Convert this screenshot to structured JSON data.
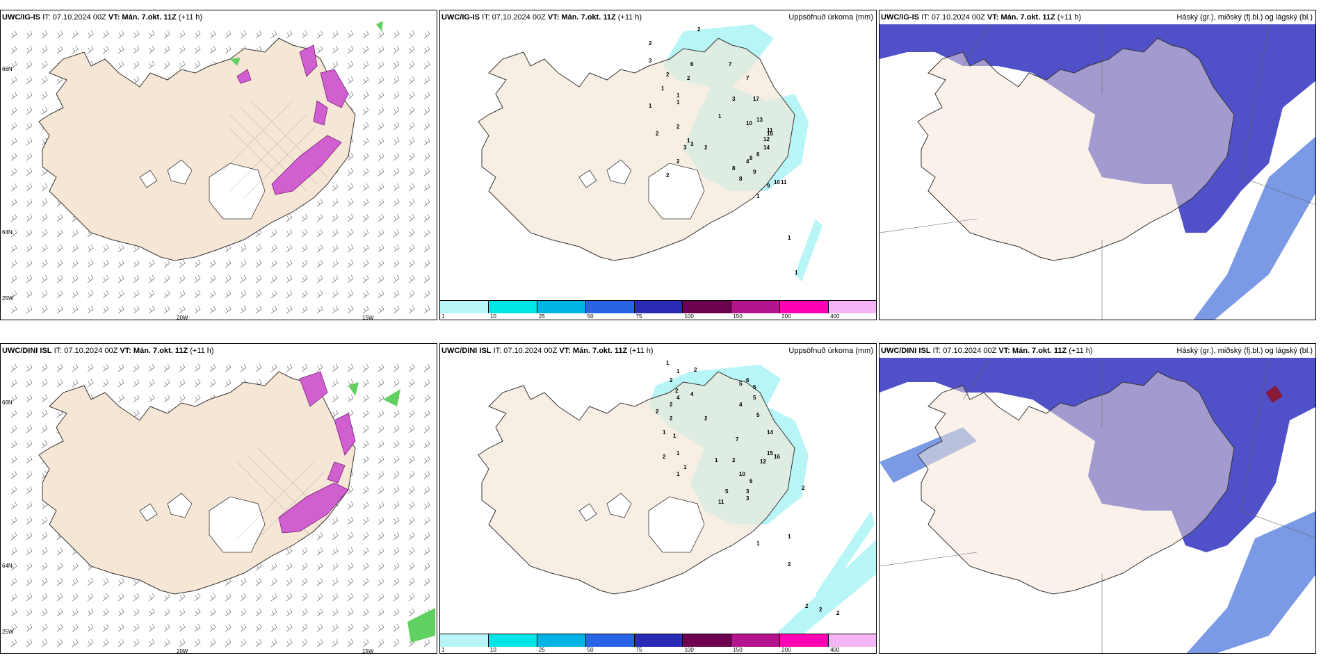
{
  "panels": {
    "top_left": {
      "model": "UWC/IG-IS",
      "it": "IT: 07.10.2024 00Z",
      "vt_label": "VT:",
      "vt": "Mán. 7.okt. 11Z",
      "lead": "(+11 h)"
    },
    "top_mid": {
      "model": "UWC/IG-IS",
      "it": "IT: 07.10.2024 00Z",
      "vt_label": "VT:",
      "vt": "Mán. 7.okt. 11Z",
      "lead": "(+11 h)",
      "right": "Uppsöfnuð úrkoma (mm)"
    },
    "top_right": {
      "model": "UWC/IG-IS",
      "it": "IT: 07.10.2024 00Z",
      "vt_label": "VT:",
      "vt": "Mán. 7.okt. 11Z",
      "lead": "(+11 h)",
      "right": "Háský (gr.), miðský (fj.bl.) og lágský (bl.)"
    },
    "bot_left": {
      "model": "UWC/DINI ISL",
      "it": "IT: 07.10.2024 00Z",
      "vt_label": "VT:",
      "vt": "Mán. 7.okt. 11Z",
      "lead": "(+11 h)"
    },
    "bot_mid": {
      "model": "UWC/DINI ISL",
      "it": "IT: 07.10.2024 00Z",
      "vt_label": "VT:",
      "vt": "Mán. 7.okt. 11Z",
      "lead": "(+11 h)",
      "right": "Uppsöfnuð úrkoma (mm)"
    },
    "bot_right": {
      "model": "UWC/DINI ISL",
      "it": "IT: 07.10.2024 00Z",
      "vt_label": "VT:",
      "vt": "Mán. 7.okt. 11Z",
      "lead": "(+11 h)",
      "right": "Háský (gr.), miðský (fj.bl.) og lágský (bl.)"
    }
  },
  "grid_labels": {
    "lat66": "66N",
    "lat64": "64N",
    "lon25": "25W",
    "lon20": "20W",
    "lon15": "15W"
  },
  "legend": {
    "labels": [
      "1",
      "10",
      "25",
      "50",
      "75",
      "100",
      "150",
      "200",
      "400"
    ],
    "colors": [
      "#b7f5f7",
      "#00e6e6",
      "#00b4e6",
      "#2a64e6",
      "#2a2ab4",
      "#6e0050",
      "#b4148c",
      "#ff00b4",
      "#f5b4f5"
    ]
  },
  "precip_values_top": [
    "2",
    "2",
    "6",
    "3",
    "7",
    "2",
    "2",
    "7",
    "1",
    "1",
    "1",
    "3",
    "17",
    "1",
    "10",
    "11",
    "13",
    "16",
    "12",
    "1",
    "2",
    "2",
    "14",
    "8",
    "3",
    "2",
    "3",
    "2",
    "1",
    "2",
    "8",
    "4",
    "6",
    "8",
    "9",
    "10",
    "11",
    "9",
    "1",
    "1",
    "1"
  ],
  "precip_values_bot": [
    "1",
    "1",
    "2",
    "2",
    "2",
    "4",
    "4",
    "2",
    "2",
    "6",
    "5",
    "5",
    "2",
    "1",
    "1",
    "5",
    "4",
    "5",
    "2",
    "1",
    "14",
    "7",
    "15",
    "16",
    "12",
    "2",
    "1",
    "1",
    "2",
    "1",
    "10",
    "6",
    "3",
    "5",
    "11",
    "3",
    "2",
    "1",
    "1",
    "2",
    "2",
    "2",
    "2"
  ],
  "colors": {
    "land": "#f5e6d6",
    "precip_light": "#b7f5f7",
    "cloud_high": "#5050c8",
    "cloud_low": "#7a9ae6",
    "cloud_mid": "#3c3cb4",
    "snow": "#d060d0"
  }
}
